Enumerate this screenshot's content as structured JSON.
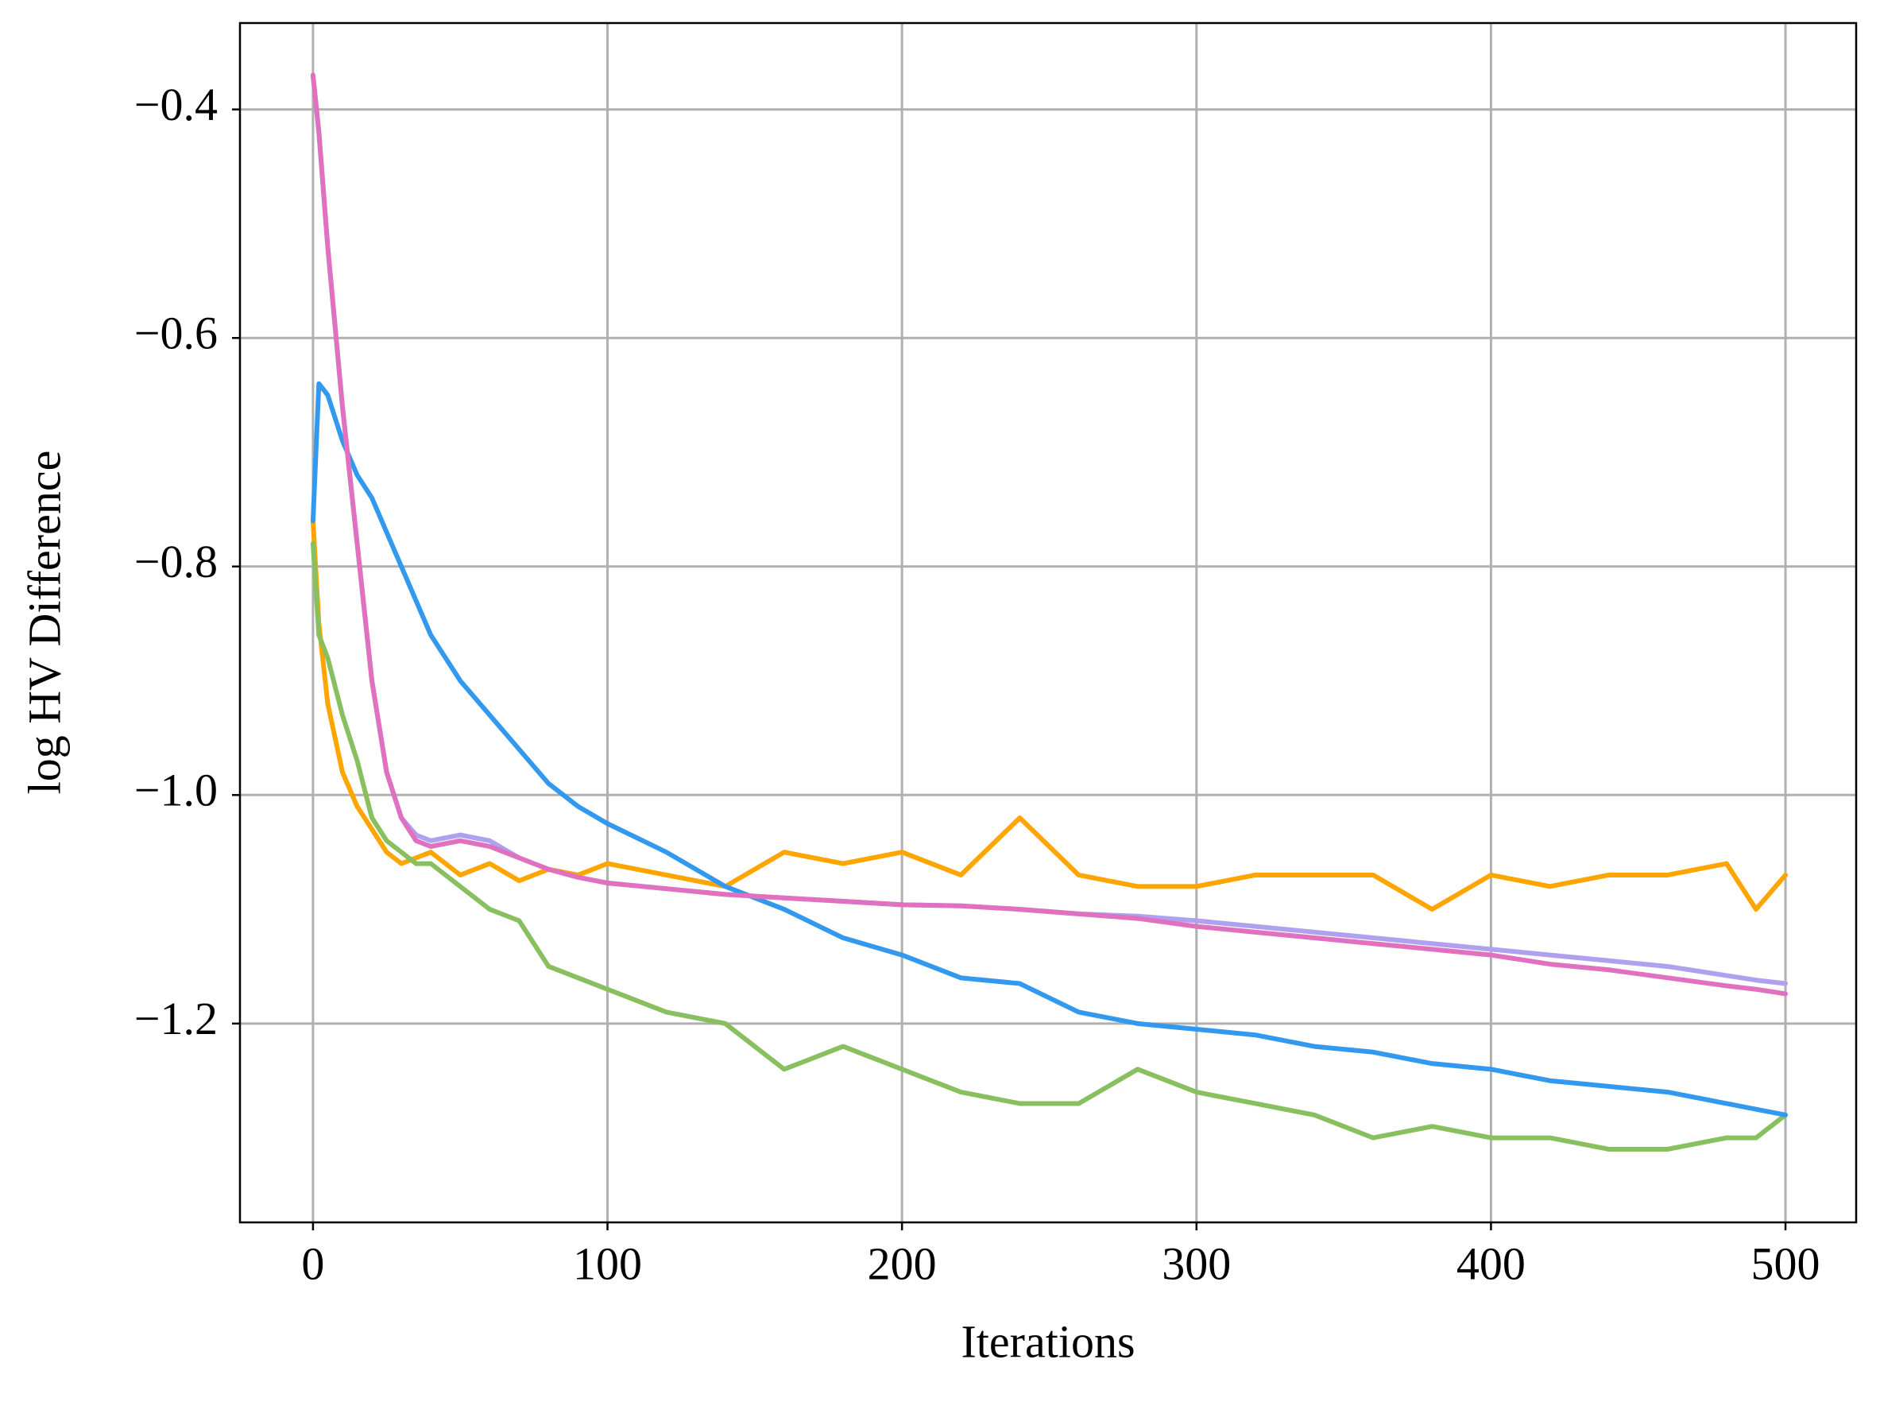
{
  "chart_data": {
    "type": "line",
    "xlabel": "Iterations",
    "ylabel": "log HV Difference",
    "x": [
      0,
      2,
      5,
      10,
      15,
      20,
      25,
      30,
      35,
      40,
      50,
      60,
      70,
      80,
      90,
      100,
      120,
      140,
      160,
      180,
      200,
      220,
      240,
      260,
      280,
      300,
      320,
      340,
      360,
      380,
      400,
      420,
      440,
      460,
      480,
      490,
      500
    ],
    "series": [
      {
        "color": "#ffa500",
        "values": [
          -0.76,
          -0.85,
          -0.92,
          -0.98,
          -1.01,
          -1.03,
          -1.05,
          -1.06,
          -1.055,
          -1.05,
          -1.07,
          -1.06,
          -1.075,
          -1.065,
          -1.07,
          -1.06,
          -1.07,
          -1.08,
          -1.05,
          -1.06,
          -1.05,
          -1.07,
          -1.02,
          -1.07,
          -1.08,
          -1.08,
          -1.07,
          -1.07,
          -1.07,
          -1.1,
          -1.07,
          -1.08,
          -1.07,
          -1.07,
          -1.06,
          -1.1,
          -1.07
        ]
      },
      {
        "color": "#88c060",
        "values": [
          -0.78,
          -0.86,
          -0.88,
          -0.93,
          -0.97,
          -1.02,
          -1.04,
          -1.05,
          -1.06,
          -1.06,
          -1.08,
          -1.1,
          -1.11,
          -1.15,
          -1.16,
          -1.17,
          -1.19,
          -1.2,
          -1.24,
          -1.22,
          -1.24,
          -1.26,
          -1.27,
          -1.27,
          -1.24,
          -1.26,
          -1.27,
          -1.28,
          -1.3,
          -1.29,
          -1.3,
          -1.3,
          -1.31,
          -1.31,
          -1.3,
          -1.3,
          -1.28
        ]
      },
      {
        "color": "#3399ee",
        "values": [
          -0.76,
          -0.64,
          -0.65,
          -0.69,
          -0.72,
          -0.74,
          -0.77,
          -0.8,
          -0.83,
          -0.86,
          -0.9,
          -0.93,
          -0.96,
          -0.99,
          -1.01,
          -1.025,
          -1.05,
          -1.08,
          -1.1,
          -1.125,
          -1.14,
          -1.16,
          -1.165,
          -1.19,
          -1.2,
          -1.205,
          -1.21,
          -1.22,
          -1.225,
          -1.235,
          -1.24,
          -1.25,
          -1.255,
          -1.26,
          -1.27,
          -1.275,
          -1.28
        ]
      },
      {
        "color": "#b0a0f0",
        "values": [
          -0.37,
          -0.42,
          -0.52,
          -0.66,
          -0.78,
          -0.9,
          -0.98,
          -1.02,
          -1.035,
          -1.04,
          -1.035,
          -1.04,
          -1.055,
          -1.065,
          -1.072,
          -1.077,
          -1.082,
          -1.087,
          -1.09,
          -1.093,
          -1.096,
          -1.097,
          -1.1,
          -1.104,
          -1.106,
          -1.11,
          -1.115,
          -1.12,
          -1.125,
          -1.13,
          -1.135,
          -1.14,
          -1.145,
          -1.15,
          -1.158,
          -1.162,
          -1.165
        ]
      },
      {
        "color": "#e070c0",
        "values": [
          -0.37,
          -0.42,
          -0.52,
          -0.66,
          -0.78,
          -0.9,
          -0.98,
          -1.02,
          -1.04,
          -1.045,
          -1.04,
          -1.045,
          -1.055,
          -1.065,
          -1.072,
          -1.077,
          -1.082,
          -1.087,
          -1.09,
          -1.093,
          -1.096,
          -1.097,
          -1.1,
          -1.104,
          -1.108,
          -1.115,
          -1.12,
          -1.125,
          -1.13,
          -1.135,
          -1.14,
          -1.148,
          -1.153,
          -1.16,
          -1.167,
          -1.17,
          -1.174
        ]
      }
    ],
    "xlim": [
      -24.8,
      524
    ],
    "ylim": [
      -1.374,
      -0.3244
    ],
    "xticks": [
      0,
      100,
      200,
      300,
      400,
      500
    ],
    "yticks": [
      {
        "value": -0.4,
        "label": "−0.4"
      },
      {
        "value": -0.6,
        "label": "−0.6"
      },
      {
        "value": -0.8,
        "label": "−0.8"
      },
      {
        "value": -1.0,
        "label": "−1.0"
      },
      {
        "value": -1.2,
        "label": "−1.2"
      }
    ],
    "grid": true
  }
}
